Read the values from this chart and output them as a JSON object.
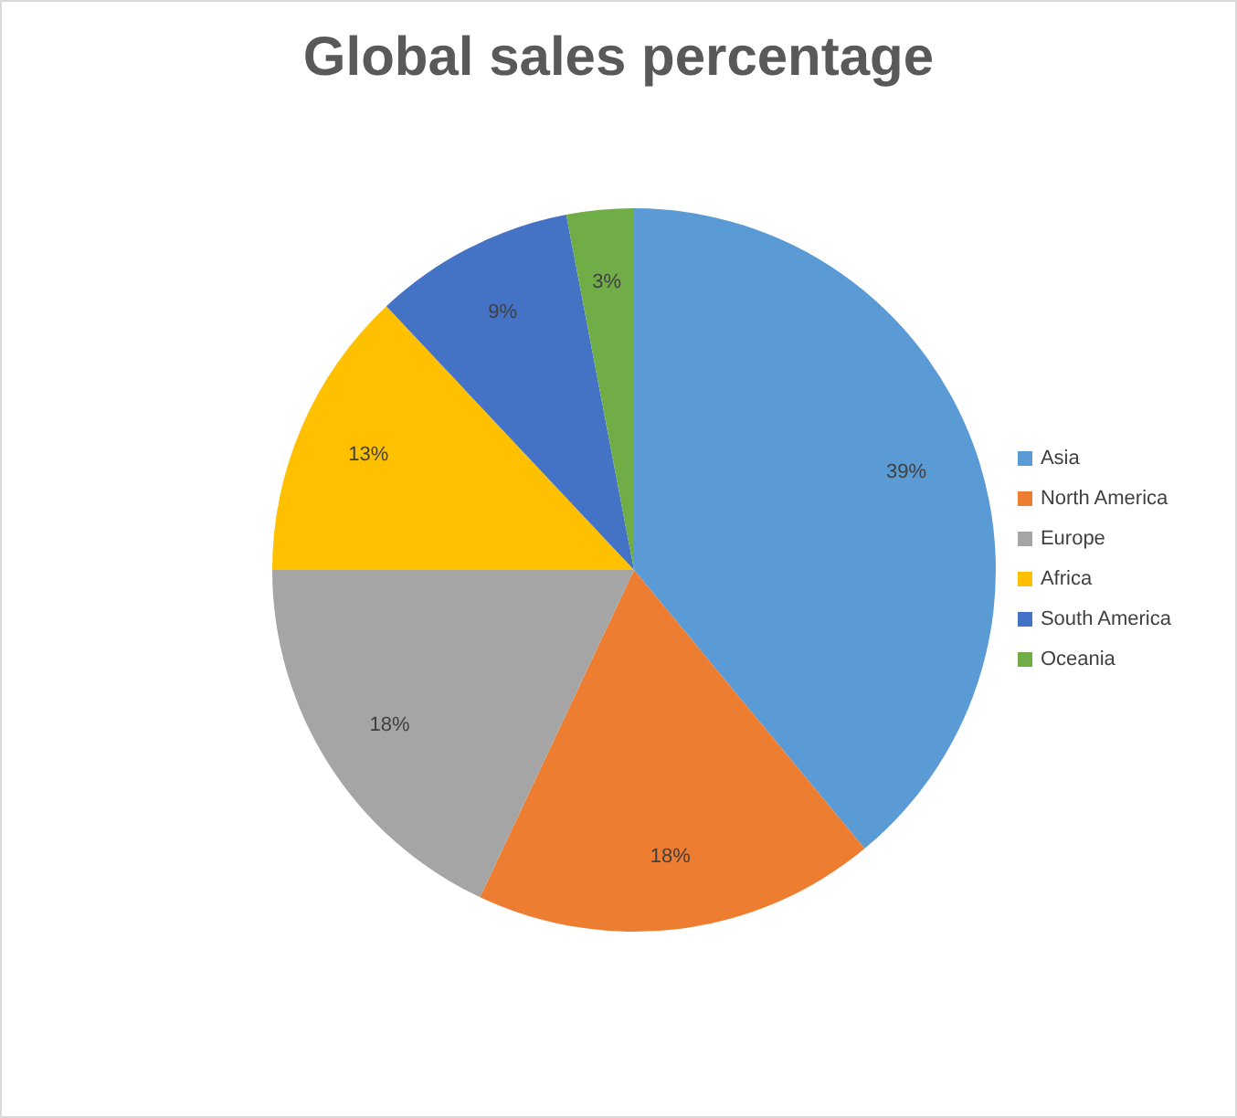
{
  "chart_data": {
    "type": "pie",
    "title": "Global sales percentage",
    "categories": [
      "Asia",
      "North America",
      "Europe",
      "Africa",
      "South America",
      "Oceania"
    ],
    "values": [
      39,
      18,
      18,
      13,
      9,
      3
    ],
    "value_labels": [
      "39%",
      "18%",
      "18%",
      "13%",
      "9%",
      "3%"
    ],
    "colors": [
      "#5b9bd5",
      "#ed7d31",
      "#a5a5a5",
      "#ffc000",
      "#4472c4",
      "#70ad47"
    ],
    "legend": "right"
  }
}
